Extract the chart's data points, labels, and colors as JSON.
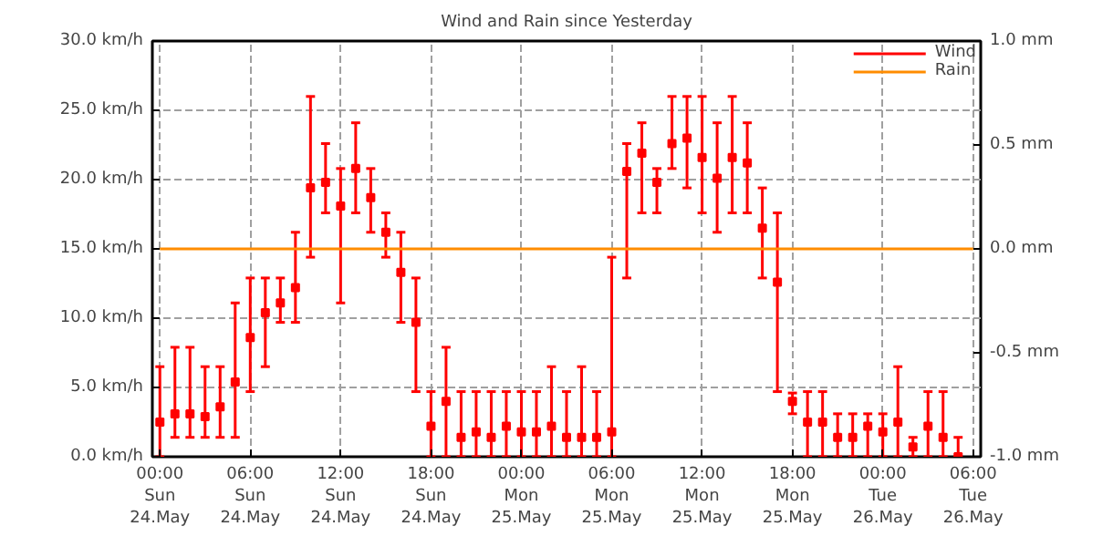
{
  "chart_data": {
    "type": "scatter",
    "title": "Wind and Rain since Yesterday",
    "categories": [
      "00:00\nSun\n24.May",
      null,
      null,
      null,
      null,
      null,
      "06:00\nSun\n24.May",
      null,
      null,
      null,
      null,
      null,
      "12:00\nSun\n24.May",
      null,
      null,
      null,
      null,
      null,
      "18:00\nSun\n24.May",
      null,
      null,
      null,
      null,
      null,
      "00:00\nMon\n25.May",
      null,
      null,
      null,
      null,
      null,
      "06:00\nMon\n25.May",
      null,
      null,
      null,
      null,
      null,
      "12:00\nMon\n25.May",
      null,
      null,
      null,
      null,
      null,
      "18:00\nMon\n25.May",
      null,
      null,
      null,
      null,
      null,
      "00:00\nTue\n26.May",
      null,
      null,
      null,
      null,
      null,
      "06:00\nTue\n26.May"
    ],
    "ylim": [
      0,
      30
    ],
    "yticks": [
      {
        "value": 0,
        "label": "0.0 km/h"
      },
      {
        "value": 5,
        "label": "5.0 km/h"
      },
      {
        "value": 10,
        "label": "10.0 km/h"
      },
      {
        "value": 15,
        "label": "15.0 km/h"
      },
      {
        "value": 20,
        "label": "20.0 km/h"
      },
      {
        "value": 25,
        "label": "25.0 km/h"
      },
      {
        "value": 30,
        "label": "30.0 km/h"
      }
    ],
    "y2lim": [
      -1,
      1
    ],
    "y2ticks": [
      {
        "value": -1,
        "label": "-1.0 mm"
      },
      {
        "value": -0.5,
        "label": "-0.5 mm"
      },
      {
        "value": 0,
        "label": "0.0 mm"
      },
      {
        "value": 0.5,
        "label": "0.5 mm"
      },
      {
        "value": 1,
        "label": "1.0 mm"
      }
    ],
    "grid": true,
    "legend": "top right",
    "series": [
      {
        "name": "Wind",
        "color": "#ff0000",
        "marker": "square",
        "values": [
          2.5,
          3.1,
          3.1,
          2.9,
          3.6,
          5.4,
          8.6,
          10.4,
          11.1,
          12.2,
          19.4,
          19.8,
          18.1,
          20.8,
          18.7,
          16.2,
          13.3,
          9.7,
          2.2,
          4.0,
          1.4,
          1.8,
          1.4,
          2.2,
          1.8,
          1.8,
          2.2,
          1.4,
          1.4,
          1.4,
          1.8,
          20.6,
          21.9,
          19.8,
          22.6,
          23.0,
          21.6,
          20.1,
          21.6,
          21.2,
          16.5,
          12.6,
          4.0,
          2.5,
          2.5,
          1.4,
          1.4,
          2.2,
          1.8,
          2.5,
          0.7,
          2.2,
          1.4,
          0,
          null
        ],
        "errors": [
          [
            0,
            6.5
          ],
          [
            1.4,
            7.9
          ],
          [
            1.4,
            7.9
          ],
          [
            1.4,
            6.5
          ],
          [
            1.4,
            6.5
          ],
          [
            1.4,
            11.1
          ],
          [
            4.7,
            12.9
          ],
          [
            6.5,
            12.9
          ],
          [
            9.7,
            12.9
          ],
          [
            9.7,
            16.2
          ],
          [
            14.4,
            26.0
          ],
          [
            17.6,
            22.6
          ],
          [
            11.1,
            20.8
          ],
          [
            17.6,
            24.1
          ],
          [
            16.2,
            20.8
          ],
          [
            14.4,
            17.6
          ],
          [
            9.7,
            16.2
          ],
          [
            4.7,
            12.9
          ],
          [
            0,
            4.7
          ],
          [
            0,
            7.9
          ],
          [
            0,
            4.7
          ],
          [
            0,
            4.7
          ],
          [
            0,
            4.7
          ],
          [
            0,
            4.7
          ],
          [
            0,
            4.7
          ],
          [
            0,
            4.7
          ],
          [
            0,
            6.5
          ],
          [
            0,
            4.7
          ],
          [
            0,
            6.5
          ],
          [
            0,
            4.7
          ],
          [
            0,
            14.4
          ],
          [
            12.9,
            22.6
          ],
          [
            17.6,
            24.1
          ],
          [
            17.6,
            20.8
          ],
          [
            20.8,
            26.0
          ],
          [
            19.4,
            26.0
          ],
          [
            17.6,
            26.0
          ],
          [
            16.2,
            24.1
          ],
          [
            17.6,
            26.0
          ],
          [
            17.6,
            24.1
          ],
          [
            12.9,
            19.4
          ],
          [
            4.7,
            17.6
          ],
          [
            3.1,
            4.6
          ],
          [
            0,
            4.7
          ],
          [
            0,
            4.7
          ],
          [
            0,
            3.1
          ],
          [
            0,
            3.1
          ],
          [
            0,
            3.1
          ],
          [
            0,
            3.1
          ],
          [
            0,
            6.5
          ],
          [
            0,
            1.4
          ],
          [
            0,
            4.7
          ],
          [
            0,
            4.7
          ],
          [
            0,
            1.4
          ],
          null
        ]
      },
      {
        "name": "Rain",
        "type": "line",
        "axis": "y2",
        "color": "#ff8c00",
        "values": [
          0,
          0,
          0,
          0,
          0,
          0,
          0,
          0,
          0,
          0,
          0,
          0,
          0,
          0,
          0,
          0,
          0,
          0,
          0,
          0,
          0,
          0,
          0,
          0,
          0,
          0,
          0,
          0,
          0,
          0,
          0,
          0,
          0,
          0,
          0,
          0,
          0,
          0,
          0,
          0,
          0,
          0,
          0,
          0,
          0,
          0,
          0,
          0,
          0,
          0,
          0,
          0,
          0,
          0,
          0
        ]
      }
    ]
  }
}
